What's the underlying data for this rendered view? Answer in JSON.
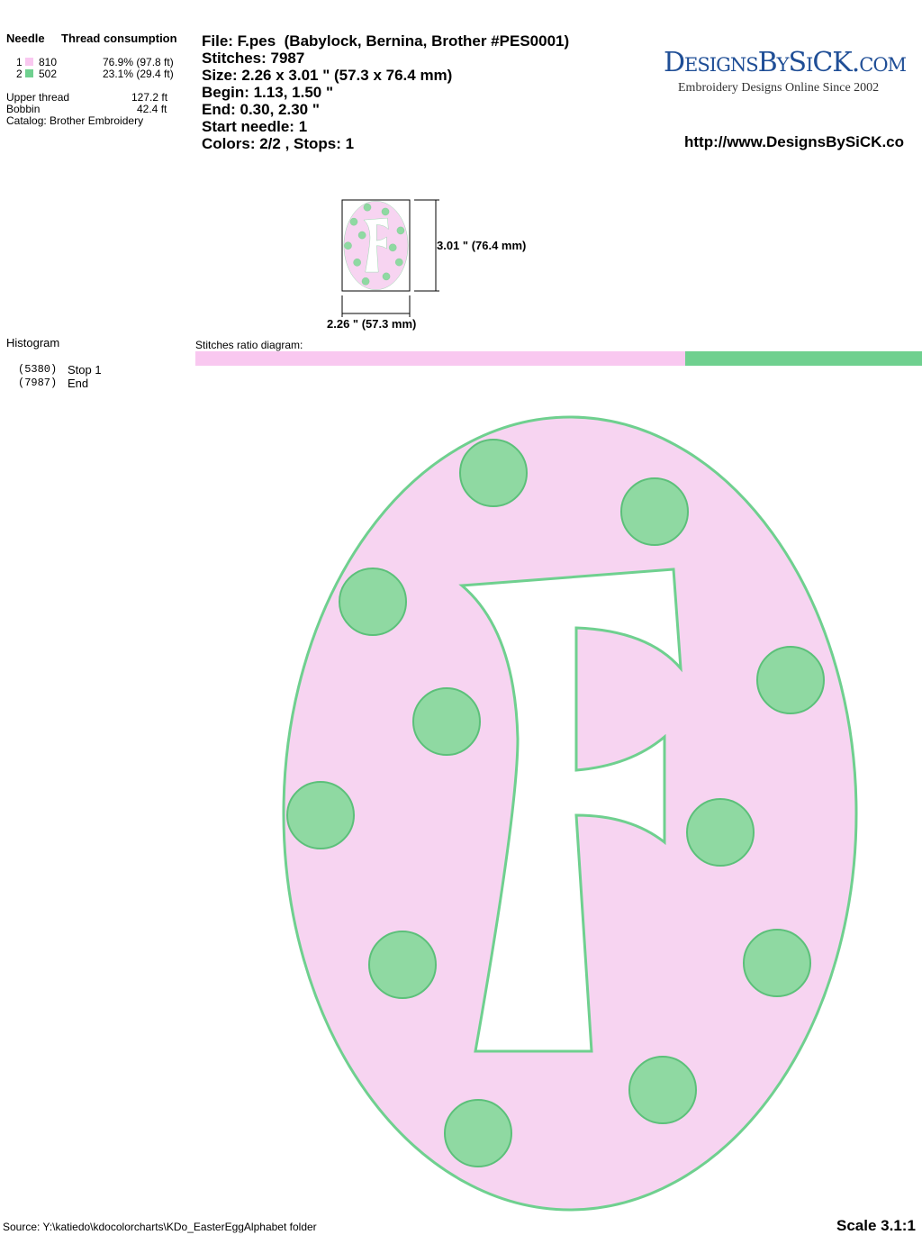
{
  "needle_table": {
    "headers": [
      "Needle",
      "Thread consumption"
    ],
    "rows": [
      {
        "needle": "1",
        "color": "#f9c8f0",
        "code": "810",
        "consumption": "76.9% (97.8 ft)"
      },
      {
        "needle": "2",
        "color": "#6fd08f",
        "code": "502",
        "consumption": "23.1% (29.4 ft)"
      }
    ]
  },
  "thread": [
    {
      "label": "Upper thread",
      "value": "127.2 ft"
    },
    {
      "label": "Bobbin",
      "value": "42.4 ft"
    }
  ],
  "catalog": "Catalog: Brother Embroidery",
  "file_info": [
    "File: F.pes  (Babylock, Bernina, Brother #PES0001)",
    "Stitches: 7987",
    "Size: 2.26 x 3.01 \" (57.3 x 76.4 mm)",
    "Begin: 1.13, 1.50 \"",
    "End: 0.30, 2.30 \"",
    "Start needle: 1",
    "Colors: 2/2 , Stops: 1"
  ],
  "logo": {
    "title": "DesignsBySiCK.com",
    "tagline": "Embroidery Designs Online Since 2002"
  },
  "url": "http://www.DesignsBySiCK.co",
  "preview": {
    "height_label": "3.01 \" (76.4 mm)",
    "width_label": "2.26 \" (57.3 mm)"
  },
  "histogram": {
    "title": "Histogram",
    "entries": [
      {
        "count": {
          "value": 5380,
          "label": "(5380)"
        },
        "label": "Stop 1"
      },
      {
        "count": {
          "value": 7987,
          "label": "(7987)"
        },
        "label": "End"
      }
    ]
  },
  "ratio": {
    "title": "Stitches ratio diagram:"
  },
  "footer": {
    "source": "Source: Y:\\katiedo\\kdocolorcharts\\KDo_EasterEggAlphabet folder",
    "scale": "Scale 3.1:1"
  }
}
